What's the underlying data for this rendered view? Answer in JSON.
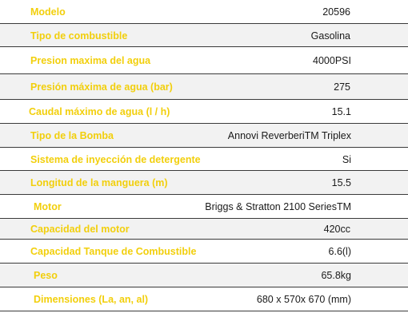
{
  "specs": {
    "rows": [
      {
        "label": "Modelo",
        "value": "20596"
      },
      {
        "label": "Tipo de combustible",
        "value": "Gasolina"
      },
      {
        "label": "Presion maxima del agua",
        "value": "4000PSI"
      },
      {
        "label": "Presión máxima de agua (bar)",
        "value": "275"
      },
      {
        "label": "Caudal máximo de agua (l / h)",
        "value": "15.1"
      },
      {
        "label": "Tipo de la Bomba",
        "value": "Annovi ReverberiTM Triplex"
      },
      {
        "label": "Sistema de inyección de detergente",
        "value": "Si"
      },
      {
        "label": "Longitud de la manguera (m)",
        "value": "15.5"
      },
      {
        "label": "Motor",
        "value": "Briggs & Stratton 2100 SeriesTM"
      },
      {
        "label": "Capacidad del motor",
        "value": "420cc"
      },
      {
        "label": "Capacidad Tanque de Combustible",
        "value": "6.6(l)"
      },
      {
        "label": "Peso",
        "value": "65.8kg"
      },
      {
        "label": "Dimensiones (La, an, al)",
        "value": "680 x 570x 670 (mm)"
      }
    ]
  }
}
